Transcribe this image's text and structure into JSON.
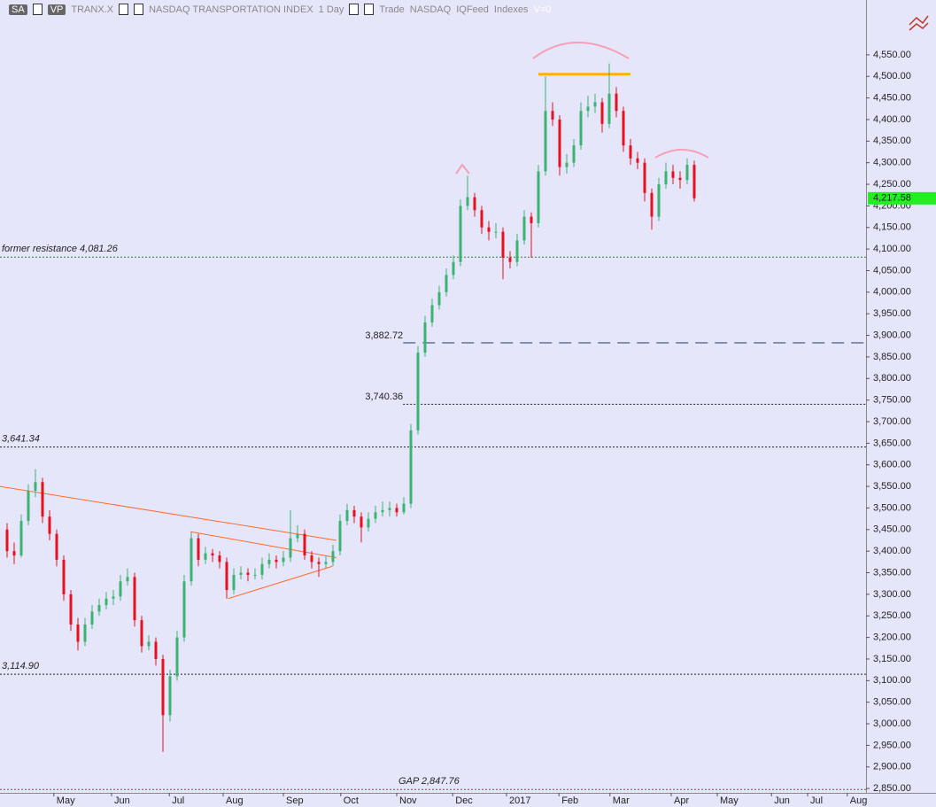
{
  "header": {
    "badge_1": "SA",
    "badge_2": "VP",
    "symbol": "TRANX.X",
    "name": "NASDAQ TRANSPORTATION INDEX",
    "interval": "1 Day",
    "field": "Trade",
    "exchange": "NASDAQ",
    "feed": "IQFeed",
    "group": "Indexes",
    "volume": "V=0"
  },
  "chart_data": {
    "type": "candlestick",
    "up_color": "#3cb371",
    "down_color": "#e8101c",
    "xlim": [
      0,
      122.25
    ],
    "xticks": [
      {
        "value": 7.6,
        "label": "May"
      },
      {
        "value": 15.75,
        "label": "Jun"
      },
      {
        "value": 23.9,
        "label": "Jul"
      },
      {
        "value": 31.5,
        "label": "Aug"
      },
      {
        "value": 40,
        "label": "Sep"
      },
      {
        "value": 48.1,
        "label": "Oct"
      },
      {
        "value": 56,
        "label": "Nov"
      },
      {
        "value": 63.9,
        "label": "Dec"
      },
      {
        "value": 71.5,
        "label": "2017"
      },
      {
        "value": 78.9,
        "label": "Feb"
      },
      {
        "value": 86.1,
        "label": "Mar"
      },
      {
        "value": 94.75,
        "label": "Apr"
      },
      {
        "value": 101.25,
        "label": "May"
      },
      {
        "value": 108.9,
        "label": "Jun"
      },
      {
        "value": 114,
        "label": "Jul"
      },
      {
        "value": 119.6,
        "label": "Aug"
      }
    ],
    "ylim": [
      2840,
      4677
    ],
    "yticks": [
      {
        "value": 2850,
        "label": "2,850.00"
      },
      {
        "value": 2900,
        "label": "2,900.00"
      },
      {
        "value": 2950,
        "label": "2,950.00"
      },
      {
        "value": 3000,
        "label": "3,000.00"
      },
      {
        "value": 3050,
        "label": "3,050.00"
      },
      {
        "value": 3100,
        "label": "3,100.00"
      },
      {
        "value": 3150,
        "label": "3,150.00"
      },
      {
        "value": 3200,
        "label": "3,200.00"
      },
      {
        "value": 3250,
        "label": "3,250.00"
      },
      {
        "value": 3300,
        "label": "3,300.00"
      },
      {
        "value": 3350,
        "label": "3,350.00"
      },
      {
        "value": 3400,
        "label": "3,400.00"
      },
      {
        "value": 3450,
        "label": "3,450.00"
      },
      {
        "value": 3500,
        "label": "3,500.00"
      },
      {
        "value": 3550,
        "label": "3,550.00"
      },
      {
        "value": 3600,
        "label": "3,600.00"
      },
      {
        "value": 3650,
        "label": "3,650.00"
      },
      {
        "value": 3700,
        "label": "3,700.00"
      },
      {
        "value": 3750,
        "label": "3,750.00"
      },
      {
        "value": 3800,
        "label": "3,800.00"
      },
      {
        "value": 3850,
        "label": "3,850.00"
      },
      {
        "value": 3900,
        "label": "3,900.00"
      },
      {
        "value": 3950,
        "label": "3,950.00"
      },
      {
        "value": 4000,
        "label": "4,000.00"
      },
      {
        "value": 4050,
        "label": "4,050.00"
      },
      {
        "value": 4100,
        "label": "4,100.00"
      },
      {
        "value": 4150,
        "label": "4,150.00"
      },
      {
        "value": 4200,
        "label": "4,200.00"
      },
      {
        "value": 4250,
        "label": "4,250.00"
      },
      {
        "value": 4300,
        "label": "4,300.00"
      },
      {
        "value": 4350,
        "label": "4,350.00"
      },
      {
        "value": 4400,
        "label": "4,400.00"
      },
      {
        "value": 4450,
        "label": "4,450.00"
      },
      {
        "value": 4500,
        "label": "4,500.00"
      },
      {
        "value": 4550,
        "label": "4,550.00"
      }
    ],
    "x": [
      1,
      2,
      3,
      4,
      5,
      6,
      7,
      8,
      9,
      10,
      11,
      12,
      13,
      14,
      15,
      16,
      17,
      18,
      19,
      20,
      21,
      22,
      23,
      24,
      25,
      26,
      27,
      28,
      29,
      30,
      31,
      32,
      33,
      34,
      35,
      36,
      37,
      38,
      39,
      40,
      41,
      42,
      43,
      44,
      45,
      46,
      47,
      48,
      49,
      50,
      51,
      52,
      53,
      54,
      55,
      56,
      57,
      58,
      59,
      60,
      61,
      62,
      63,
      64,
      65,
      66,
      67,
      68,
      69,
      70,
      71,
      72,
      73,
      74,
      75,
      76,
      77,
      78,
      79,
      80,
      81,
      82,
      83,
      84,
      85,
      86,
      87,
      88,
      89,
      90,
      91,
      92,
      93,
      94,
      95,
      96,
      97,
      98
    ],
    "ohlc": [
      [
        3450,
        3465,
        3385,
        3400
      ],
      [
        3400,
        3420,
        3370,
        3390
      ],
      [
        3390,
        3485,
        3385,
        3470
      ],
      [
        3470,
        3555,
        3460,
        3540
      ],
      [
        3540,
        3590,
        3525,
        3560
      ],
      [
        3560,
        3570,
        3465,
        3480
      ],
      [
        3480,
        3495,
        3425,
        3440
      ],
      [
        3440,
        3450,
        3365,
        3380
      ],
      [
        3380,
        3390,
        3285,
        3300
      ],
      [
        3300,
        3310,
        3215,
        3230
      ],
      [
        3230,
        3245,
        3170,
        3190
      ],
      [
        3190,
        3245,
        3180,
        3230
      ],
      [
        3230,
        3275,
        3220,
        3260
      ],
      [
        3260,
        3290,
        3250,
        3275
      ],
      [
        3275,
        3305,
        3265,
        3290
      ],
      [
        3290,
        3310,
        3275,
        3295
      ],
      [
        3295,
        3345,
        3285,
        3330
      ],
      [
        3330,
        3360,
        3320,
        3340
      ],
      [
        3340,
        3350,
        3225,
        3240
      ],
      [
        3240,
        3250,
        3165,
        3180
      ],
      [
        3180,
        3205,
        3170,
        3190
      ],
      [
        3190,
        3200,
        3135,
        3150
      ],
      [
        3150,
        3160,
        2935,
        3020
      ],
      [
        3020,
        3125,
        3005,
        3110
      ],
      [
        3110,
        3215,
        3100,
        3200
      ],
      [
        3200,
        3345,
        3190,
        3330
      ],
      [
        3330,
        3445,
        3320,
        3430
      ],
      [
        3430,
        3440,
        3365,
        3380
      ],
      [
        3380,
        3410,
        3370,
        3395
      ],
      [
        3395,
        3405,
        3375,
        3390
      ],
      [
        3390,
        3400,
        3360,
        3375
      ],
      [
        3375,
        3385,
        3290,
        3310
      ],
      [
        3310,
        3360,
        3300,
        3345
      ],
      [
        3345,
        3365,
        3335,
        3350
      ],
      [
        3350,
        3360,
        3330,
        3345
      ],
      [
        3345,
        3360,
        3335,
        3345
      ],
      [
        3345,
        3385,
        3335,
        3370
      ],
      [
        3370,
        3395,
        3360,
        3380
      ],
      [
        3380,
        3390,
        3360,
        3375
      ],
      [
        3375,
        3400,
        3365,
        3385
      ],
      [
        3385,
        3495,
        3375,
        3430
      ],
      [
        3430,
        3460,
        3420,
        3440
      ],
      [
        3440,
        3450,
        3380,
        3390
      ],
      [
        3390,
        3400,
        3360,
        3375
      ],
      [
        3375,
        3385,
        3340,
        3370
      ],
      [
        3370,
        3390,
        3360,
        3375
      ],
      [
        3375,
        3415,
        3365,
        3400
      ],
      [
        3400,
        3485,
        3390,
        3470
      ],
      [
        3470,
        3510,
        3460,
        3495
      ],
      [
        3495,
        3505,
        3465,
        3480
      ],
      [
        3480,
        3490,
        3420,
        3455
      ],
      [
        3455,
        3490,
        3445,
        3475
      ],
      [
        3475,
        3505,
        3465,
        3490
      ],
      [
        3490,
        3515,
        3480,
        3495
      ],
      [
        3495,
        3515,
        3480,
        3500
      ],
      [
        3500,
        3510,
        3480,
        3490
      ],
      [
        3490,
        3525,
        3485,
        3510
      ],
      [
        3510,
        3695,
        3500,
        3680
      ],
      [
        3680,
        3875,
        3670,
        3860
      ],
      [
        3860,
        3945,
        3850,
        3930
      ],
      [
        3930,
        3985,
        3920,
        3970
      ],
      [
        3970,
        4015,
        3960,
        4000
      ],
      [
        4000,
        4055,
        3990,
        4040
      ],
      [
        4040,
        4085,
        4030,
        4070
      ],
      [
        4070,
        4215,
        4060,
        4200
      ],
      [
        4200,
        4270,
        4190,
        4220
      ],
      [
        4220,
        4230,
        4175,
        4190
      ],
      [
        4190,
        4200,
        4135,
        4150
      ],
      [
        4150,
        4165,
        4120,
        4140
      ],
      [
        4140,
        4160,
        4125,
        4140
      ],
      [
        4140,
        4150,
        4030,
        4080
      ],
      [
        4080,
        4095,
        4055,
        4070
      ],
      [
        4070,
        4135,
        4060,
        4120
      ],
      [
        4120,
        4190,
        4110,
        4175
      ],
      [
        4175,
        4185,
        4080,
        4160
      ],
      [
        4160,
        4295,
        4150,
        4280
      ],
      [
        4280,
        4500,
        4270,
        4420
      ],
      [
        4420,
        4440,
        4385,
        4400
      ],
      [
        4400,
        4410,
        4270,
        4290
      ],
      [
        4290,
        4320,
        4275,
        4300
      ],
      [
        4300,
        4355,
        4290,
        4340
      ],
      [
        4340,
        4440,
        4330,
        4420
      ],
      [
        4420,
        4455,
        4405,
        4430
      ],
      [
        4430,
        4460,
        4415,
        4440
      ],
      [
        4440,
        4450,
        4370,
        4390
      ],
      [
        4390,
        4530,
        4380,
        4460
      ],
      [
        4460,
        4475,
        4405,
        4420
      ],
      [
        4420,
        4430,
        4325,
        4340
      ],
      [
        4340,
        4355,
        4295,
        4310
      ],
      [
        4310,
        4325,
        4285,
        4300
      ],
      [
        4300,
        4310,
        4210,
        4230
      ],
      [
        4230,
        4240,
        4145,
        4175
      ],
      [
        4175,
        4265,
        4165,
        4250
      ],
      [
        4250,
        4300,
        4240,
        4280
      ],
      [
        4280,
        4295,
        4250,
        4265
      ],
      [
        4265,
        4280,
        4240,
        4260
      ],
      [
        4260,
        4310,
        4250,
        4295
      ],
      [
        4295,
        4305,
        4210,
        4217.58
      ]
    ],
    "last_value_label": "4,217.58",
    "levels": [
      {
        "label": "former resistance 4,081.26",
        "value": 4081.26,
        "color": "#2e7d32",
        "dash": "2 2",
        "from": 0
      },
      {
        "label": "3,882.72",
        "value": 3882.72,
        "color": "#1f3a5f",
        "dash": "14 8",
        "from": 56.9
      },
      {
        "label": "3,740.36",
        "value": 3740.36,
        "color": "#222",
        "dash": "2 2",
        "from": 56.9
      },
      {
        "label": "3,641.34",
        "value": 3641.34,
        "color": "#222",
        "dash": "2 2",
        "from": 0
      },
      {
        "label": "3,114.90",
        "value": 3114.9,
        "color": "#222",
        "dash": "2 2",
        "from": 0
      },
      {
        "label": "GAP 2,847.76",
        "value": 2847.76,
        "color": "#c62828",
        "dash": "2 2",
        "from": 0
      }
    ],
    "trendlines": [
      {
        "x": [
          0,
          47.5
        ],
        "y": [
          3550,
          3425
        ],
        "color": "#ff6a2a"
      },
      {
        "x": [
          26.9,
          47.5
        ],
        "y": [
          3445,
          3385
        ],
        "color": "#ff6a2a"
      },
      {
        "x": [
          32.2,
          46.9
        ],
        "y": [
          3290,
          3365
        ],
        "color": "#ff6a2a"
      },
      {
        "x": [
          76,
          89
        ],
        "y": [
          4505,
          4505
        ],
        "color": "#ffb300"
      }
    ]
  }
}
